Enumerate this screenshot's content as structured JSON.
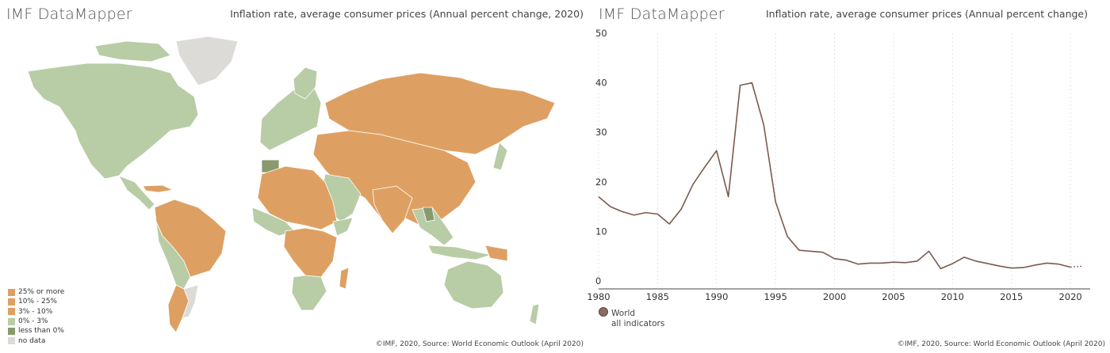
{
  "colors": {
    "high": "#dea062",
    "low": "#b8cca6",
    "negative": "#889a6e",
    "nodata": "#dddbd7",
    "border": "#ffffff",
    "line": "#7a5a4e",
    "grid": "#e3e3e3"
  },
  "map_panel": {
    "brand": "IMF DataMapper",
    "title": "Inflation rate, average consumer prices (Annual percent change, 2020)",
    "credit": "©IMF, 2020, Source: World Economic Outlook (April 2020)",
    "legend": [
      {
        "label": "25% or more",
        "color": "#dea062"
      },
      {
        "label": "10% - 25%",
        "color": "#dea062"
      },
      {
        "label": "3% - 10%",
        "color": "#dea062"
      },
      {
        "label": "0% - 3%",
        "color": "#b8cca6"
      },
      {
        "label": "less than 0%",
        "color": "#889a6e"
      },
      {
        "label": "no data",
        "color": "#dddbd7"
      }
    ]
  },
  "line_panel": {
    "brand": "IMF DataMapper",
    "title": "Inflation rate, average consumer prices (Annual percent change)",
    "credit": "©IMF, 2020, Source: World Economic Outlook (April 2020)",
    "series_legend": {
      "name": "World",
      "sub": "all indicators"
    }
  },
  "chart_data": {
    "type": "line",
    "xlim": [
      1980,
      2021
    ],
    "ylim": [
      0,
      50
    ],
    "x_ticks": [
      1980,
      1985,
      1990,
      1995,
      2000,
      2005,
      2010,
      2015,
      2020
    ],
    "y_ticks": [
      0,
      10,
      20,
      30,
      40,
      50
    ],
    "grid": "vertical",
    "legend_position": "bottom-left",
    "series": [
      {
        "name": "World",
        "x": [
          1980,
          1981,
          1982,
          1983,
          1984,
          1985,
          1986,
          1987,
          1988,
          1989,
          1990,
          1991,
          1992,
          1993,
          1994,
          1995,
          1996,
          1997,
          1998,
          1999,
          2000,
          2001,
          2002,
          2003,
          2004,
          2005,
          2006,
          2007,
          2008,
          2009,
          2010,
          2011,
          2012,
          2013,
          2014,
          2015,
          2016,
          2017,
          2018,
          2019,
          2020
        ],
        "y": [
          17.0,
          15.0,
          14.0,
          13.3,
          13.8,
          13.5,
          11.5,
          14.5,
          19.5,
          23.0,
          26.3,
          17.0,
          39.5,
          40.0,
          31.5,
          16.0,
          9.0,
          6.2,
          6.0,
          5.8,
          4.5,
          4.2,
          3.4,
          3.6,
          3.6,
          3.8,
          3.7,
          4.0,
          6.0,
          2.5,
          3.5,
          4.8,
          4.0,
          3.5,
          3.0,
          2.6,
          2.7,
          3.2,
          3.6,
          3.4,
          2.8
        ]
      }
    ]
  }
}
